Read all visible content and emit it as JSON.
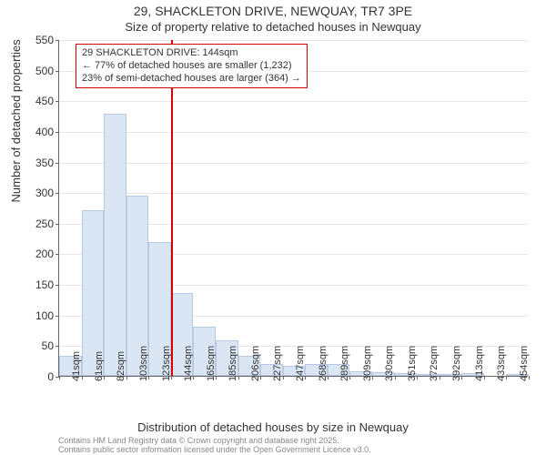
{
  "title_main": "29, SHACKLETON DRIVE, NEWQUAY, TR7 3PE",
  "title_sub": "Size of property relative to detached houses in Newquay",
  "ylabel": "Number of detached properties",
  "xlabel": "Distribution of detached houses by size in Newquay",
  "footer_line1": "Contains HM Land Registry data © Crown copyright and database right 2025.",
  "footer_line2": "Contains public sector information licensed under the Open Government Licence v3.0.",
  "callout": {
    "line1": "29 SHACKLETON DRIVE: 144sqm",
    "line2": "← 77% of detached houses are smaller (1,232)",
    "line3": "23% of semi-detached houses are larger (364) →"
  },
  "chart": {
    "type": "histogram",
    "ylim": [
      0,
      550
    ],
    "ytick_step": 50,
    "background_color": "#ffffff",
    "grid_color": "#e6e6e6",
    "axis_color": "#666666",
    "bar_fill": "#dbe6f4",
    "bar_border": "#b9c9e0",
    "marker_color": "#d40000",
    "marker_value_label": "144sqm",
    "marker_bin_index": 5,
    "x_labels": [
      "41sqm",
      "61sqm",
      "82sqm",
      "103sqm",
      "123sqm",
      "144sqm",
      "165sqm",
      "185sqm",
      "206sqm",
      "227sqm",
      "247sqm",
      "268sqm",
      "289sqm",
      "309sqm",
      "330sqm",
      "351sqm",
      "372sqm",
      "392sqm",
      "413sqm",
      "433sqm",
      "454sqm"
    ],
    "values": [
      33,
      270,
      428,
      295,
      218,
      135,
      80,
      58,
      33,
      20,
      17,
      20,
      19,
      8,
      6,
      5,
      3,
      2,
      5,
      0,
      3
    ],
    "title_fontsize": 14,
    "sub_fontsize": 13,
    "label_fontsize": 13,
    "tick_fontsize": 12,
    "xtick_fontsize": 11,
    "callout_fontsize": 11,
    "footer_fontsize": 9
  }
}
